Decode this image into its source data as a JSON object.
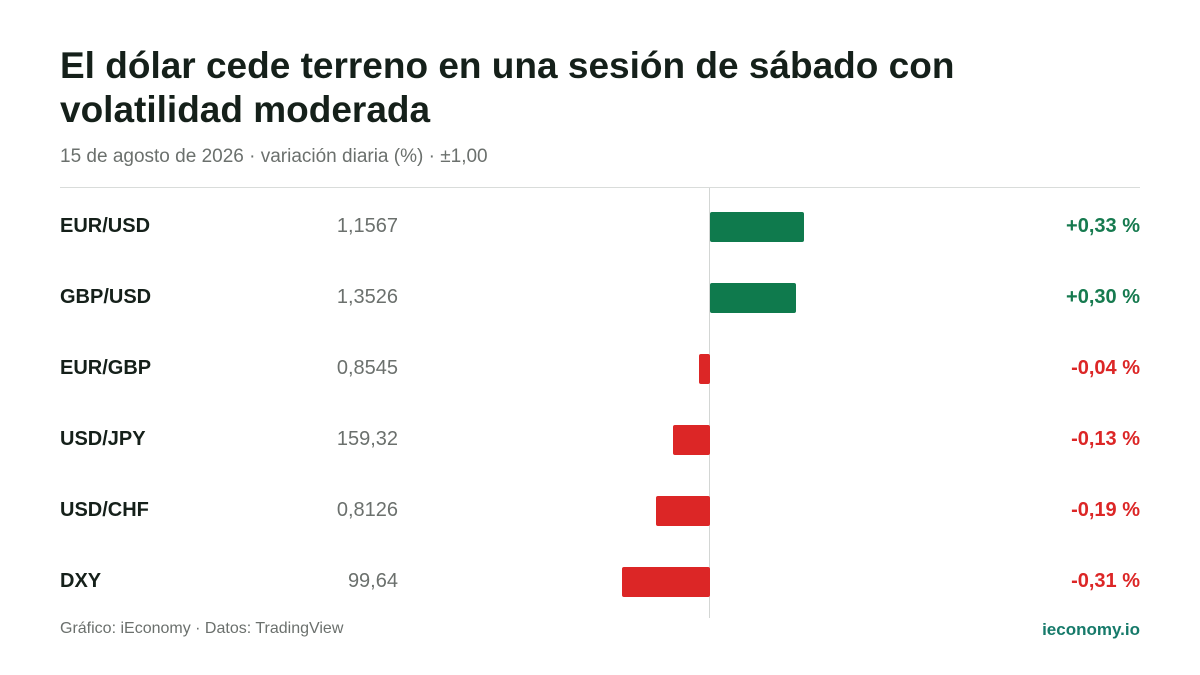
{
  "title": "El dólar cede terreno en una sesión de sábado con volatilidad moderada",
  "subtitle": "15 de agosto de 2026 · variación diaria (%) · ±1,00",
  "footer": {
    "source": "Gráfico: iEconomy · Datos: TradingView",
    "brand": "ieconomy.io"
  },
  "colors": {
    "positive": "#0f7a4d",
    "negative": "#dc2626",
    "brand": "#167a6a"
  },
  "chart_data": {
    "type": "bar",
    "orientation": "horizontal",
    "title": "El dólar cede terreno en una sesión de sábado con volatilidad moderada",
    "subtitle": "15 de agosto de 2026 · variación diaria (%) · ±1,00",
    "xlim": [
      -1.0,
      1.0
    ],
    "unit": "%",
    "grid": false,
    "categories": [
      "EUR/USD",
      "GBP/USD",
      "EUR/GBP",
      "USD/JPY",
      "USD/CHF",
      "DXY"
    ],
    "prices": [
      "1,1567",
      "1,3526",
      "0,8545",
      "159,32",
      "0,8126",
      "99,64"
    ],
    "values": [
      0.33,
      0.3,
      -0.04,
      -0.13,
      -0.19,
      -0.31
    ],
    "labels": [
      "+0,33 %",
      "+0,30 %",
      "-0,04 %",
      "-0,13 %",
      "-0,19 %",
      "-0,31 %"
    ]
  }
}
